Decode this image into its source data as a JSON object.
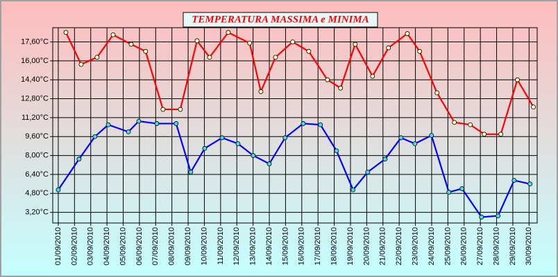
{
  "chart_data": {
    "type": "line",
    "title": "TEMPERATURA MASSIMA e MINIMA",
    "xlim": [
      0.66,
      30.5
    ],
    "xticks": [
      {
        "value": 1,
        "label": "01/09/2010"
      },
      {
        "value": 2,
        "label": "02/09/2010"
      },
      {
        "value": 3,
        "label": "03/09/2010"
      },
      {
        "value": 4,
        "label": "04/09/2010"
      },
      {
        "value": 5,
        "label": "05/09/2010"
      },
      {
        "value": 6,
        "label": "06/09/2010"
      },
      {
        "value": 7,
        "label": "07/09/2010"
      },
      {
        "value": 8,
        "label": "08/09/2010"
      },
      {
        "value": 9,
        "label": "09/09/2010"
      },
      {
        "value": 10,
        "label": "10/09/2010"
      },
      {
        "value": 11,
        "label": "11/09/2010"
      },
      {
        "value": 12,
        "label": "12/09/2010"
      },
      {
        "value": 13,
        "label": "13/09/2010"
      },
      {
        "value": 14,
        "label": "14/09/2010"
      },
      {
        "value": 15,
        "label": "15/09/2010"
      },
      {
        "value": 16,
        "label": "16/09/2010"
      },
      {
        "value": 17,
        "label": "17/09/2010"
      },
      {
        "value": 18,
        "label": "18/09/2010"
      },
      {
        "value": 19,
        "label": "19/09/2010"
      },
      {
        "value": 20,
        "label": "20/09/2010"
      },
      {
        "value": 21,
        "label": "21/09/2010"
      },
      {
        "value": 22,
        "label": "22/09/2010"
      },
      {
        "value": 23,
        "label": "23/09/2010"
      },
      {
        "value": 24,
        "label": "24/09/2010"
      },
      {
        "value": 25,
        "label": "25/09/2010"
      },
      {
        "value": 26,
        "label": "26/09/2010"
      },
      {
        "value": 27,
        "label": "27/09/2010"
      },
      {
        "value": 28,
        "label": "28/09/2010"
      },
      {
        "value": 29,
        "label": "29/09/2010"
      },
      {
        "value": 30,
        "label": "30/09/2010"
      }
    ],
    "ylim": [
      2.3,
      18.8
    ],
    "yticks": [
      {
        "value": 3.2,
        "label": "3,20°C"
      },
      {
        "value": 4.8,
        "label": "4,80°C"
      },
      {
        "value": 6.4,
        "label": "6,40°C"
      },
      {
        "value": 8.0,
        "label": "8,00°C"
      },
      {
        "value": 9.6,
        "label": "9,60°C"
      },
      {
        "value": 11.2,
        "label": "11,20°C"
      },
      {
        "value": 12.8,
        "label": "12,80°C"
      },
      {
        "value": 14.4,
        "label": "14,40°C"
      },
      {
        "value": 16.0,
        "label": "16,00°C"
      },
      {
        "value": 17.6,
        "label": "17,60°C"
      }
    ],
    "grid": true,
    "series": [
      {
        "color": "#ff0000",
        "marker_fill": "#ffffc0",
        "x": [
          1.47,
          2.41,
          3.39,
          4.38,
          5.49,
          6.38,
          7.45,
          8.52,
          9.55,
          10.32,
          11.47,
          12.79,
          13.48,
          14.38,
          15.44,
          16.43,
          17.58,
          18.39,
          19.29,
          20.36,
          21.34,
          22.5,
          23.26,
          24.33,
          25.4,
          26.38,
          27.24,
          28.26,
          29.28,
          30.27
        ],
        "values": [
          18.4,
          15.7,
          16.3,
          18.2,
          17.4,
          16.8,
          11.9,
          11.9,
          17.7,
          16.3,
          18.4,
          17.5,
          13.4,
          16.3,
          17.6,
          16.8,
          14.4,
          13.7,
          17.4,
          14.7,
          17.1,
          18.3,
          16.8,
          13.3,
          10.8,
          10.6,
          9.8,
          9.8,
          14.4,
          12.1
        ]
      },
      {
        "color": "#0000ff",
        "marker_fill": "#40e0e0",
        "x": [
          1.0,
          2.28,
          3.26,
          4.08,
          5.32,
          5.96,
          7.07,
          8.26,
          9.16,
          10.02,
          11.09,
          12.07,
          13.01,
          14.0,
          14.97,
          16.09,
          17.15,
          18.14,
          19.16,
          20.06,
          21.13,
          22.11,
          22.97,
          23.99,
          25.06,
          25.87,
          27.07,
          28.09,
          29.08,
          30.06
        ],
        "values": [
          5.1,
          7.7,
          9.6,
          10.6,
          10.0,
          10.9,
          10.7,
          10.7,
          6.6,
          8.6,
          9.5,
          9.0,
          8.0,
          7.3,
          9.5,
          10.7,
          10.6,
          8.4,
          5.1,
          6.6,
          7.7,
          9.5,
          9.0,
          9.7,
          4.9,
          5.2,
          2.8,
          2.9,
          5.9,
          5.6
        ]
      }
    ]
  }
}
